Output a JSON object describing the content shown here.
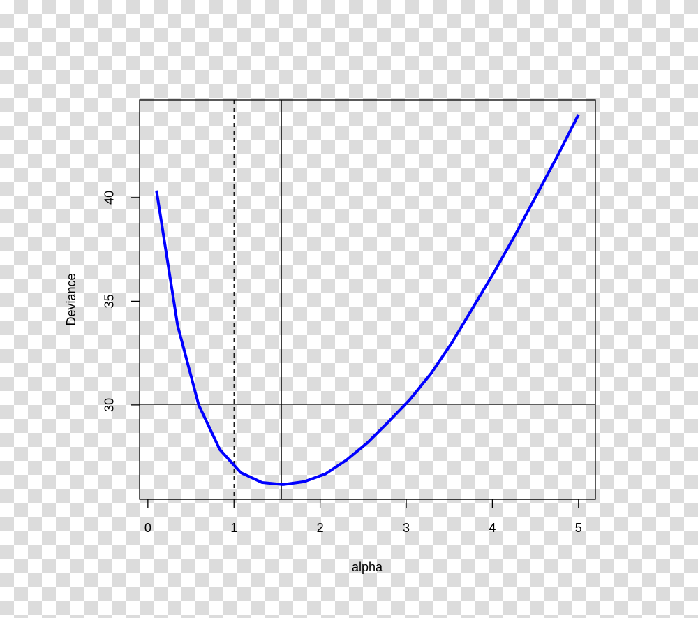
{
  "chart_data": {
    "type": "line",
    "x_label": "alpha",
    "y_label": "Deviance",
    "x": [
      0.1,
      0.345,
      0.59,
      0.835,
      1.08,
      1.325,
      1.57,
      1.815,
      2.06,
      2.305,
      2.55,
      2.795,
      3.04,
      3.285,
      3.53,
      3.775,
      4.02,
      4.265,
      4.51,
      4.755,
      5.0
    ],
    "series": [
      {
        "color": "#0000ff",
        "values": [
          40.34,
          33.84,
          30.0,
          27.85,
          26.73,
          26.26,
          26.16,
          26.3,
          26.67,
          27.34,
          28.18,
          29.19,
          30.25,
          31.5,
          33.0,
          34.7,
          36.4,
          38.2,
          40.1,
          42.0,
          44.0
        ]
      }
    ],
    "xlim": [
      -0.096,
      5.196
    ],
    "ylim": [
      25.45,
      44.71
    ],
    "xticks": [
      0,
      1,
      2,
      3,
      4,
      5
    ],
    "yticks": [
      30,
      35,
      40
    ],
    "vlines": [
      {
        "value": 1,
        "style": "dashed"
      },
      {
        "value": 1.55,
        "style": "solid"
      }
    ],
    "hlines": [
      {
        "value": 30.03,
        "style": "solid"
      }
    ]
  }
}
